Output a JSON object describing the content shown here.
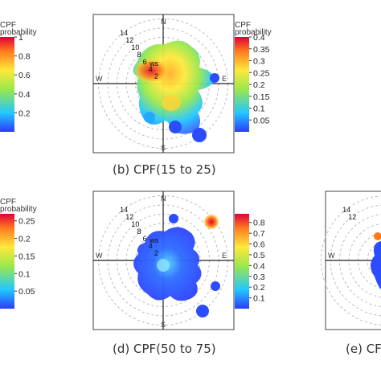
{
  "colors": {
    "low": "#2b3cff",
    "mid1": "#22c8ff",
    "mid2": "#9be84a",
    "mid3": "#ffe93b",
    "high": "#ff7a1e",
    "max": "#e0003a"
  },
  "chart_data": [
    {
      "type": "heatmap",
      "subtype": "polar",
      "title": "",
      "legend_title": [
        "CPF",
        "probability"
      ],
      "legend_ticks": [
        "1",
        "0.8",
        "0.6",
        "0.4",
        "0.2"
      ],
      "clim": [
        0,
        1
      ]
    },
    {
      "type": "heatmap",
      "subtype": "polar",
      "title": "(b) CPF(15 to 25)",
      "legend_title": [
        "CPF",
        "probability"
      ],
      "legend_ticks": [
        "0.4",
        "0.35",
        "0.3",
        "0.25",
        "0.2",
        "0.15",
        "0.1",
        "0.05"
      ],
      "clim": [
        0,
        0.4
      ],
      "directions": [
        "N",
        "E",
        "S",
        "W"
      ],
      "ring_labels": [
        "14",
        "12",
        "10",
        "8",
        "6",
        "4",
        "2"
      ],
      "ws_label": "ws"
    },
    {
      "type": "heatmap",
      "subtype": "polar",
      "title": "",
      "legend_title": [
        "CPF",
        "probability"
      ],
      "legend_ticks": [
        "0.25",
        "0.2",
        "0.15",
        "0.1",
        "0.05"
      ],
      "clim": [
        0,
        0.27
      ]
    },
    {
      "type": "heatmap",
      "subtype": "polar",
      "title": "(d) CPF(50 to 75)",
      "legend_title": [
        "CPF",
        "probability"
      ],
      "legend_ticks": [
        "0.8",
        "0.7",
        "0.6",
        "0.5",
        "0.4",
        "0.3",
        "0.2",
        "0.1"
      ],
      "clim": [
        0,
        0.88
      ],
      "directions": [
        "N",
        "E",
        "S",
        "W"
      ],
      "ring_labels": [
        "14",
        "12",
        "10",
        "8",
        "6",
        "4",
        "2"
      ],
      "ws_label": "ws"
    },
    {
      "type": "heatmap",
      "subtype": "polar",
      "title": "(e) CF",
      "ring_labels": [
        "14",
        "12"
      ],
      "directions": [
        "W"
      ]
    }
  ]
}
